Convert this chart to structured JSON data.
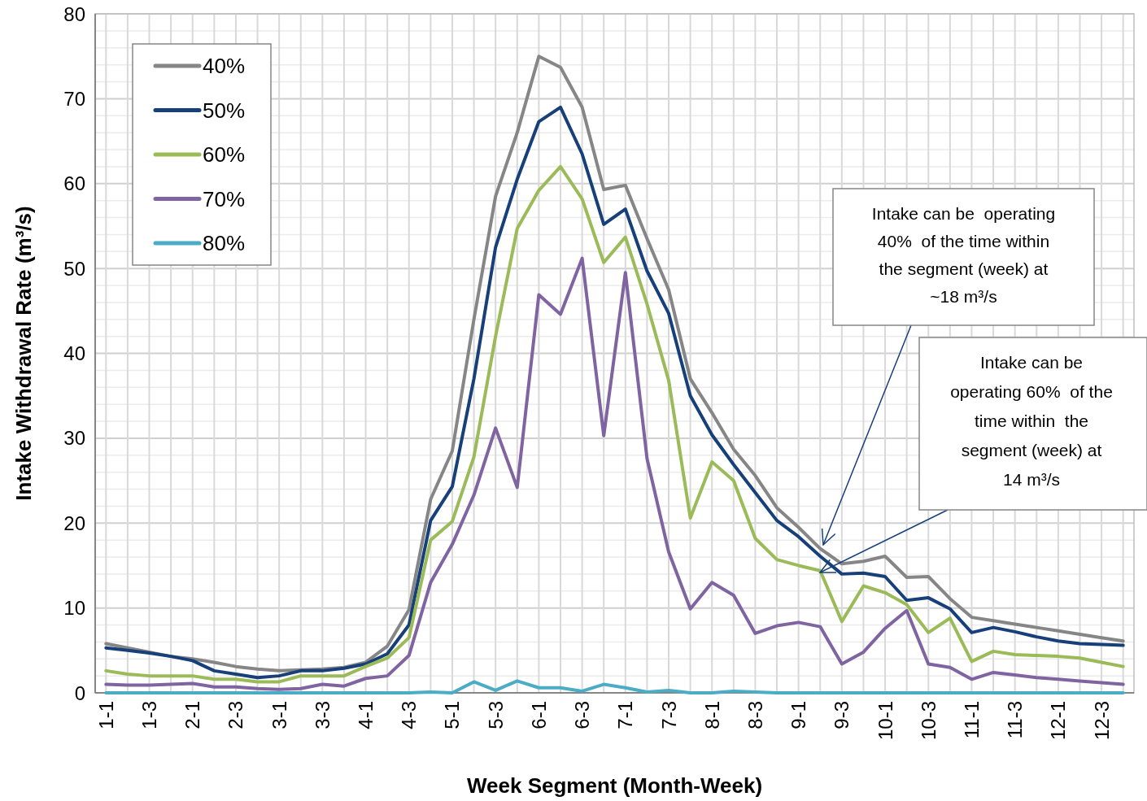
{
  "chart_data": {
    "type": "line",
    "xlabel": "Week Segment (Month-Week)",
    "ylabel": "Intake Withdrawal Rate (m³/s)",
    "categories": [
      "1-1",
      null,
      "1-3",
      null,
      "2-1",
      null,
      "2-3",
      null,
      "3-1",
      null,
      "3-3",
      null,
      "4-1",
      null,
      "4-3",
      null,
      "5-1",
      null,
      "5-3",
      null,
      "6-1",
      null,
      "6-3",
      null,
      "7-1",
      null,
      "7-3",
      null,
      "8-1",
      null,
      "8-3",
      null,
      "9-1",
      null,
      "9-3",
      null,
      "10-1",
      null,
      "10-3",
      null,
      "11-1",
      null,
      "11-3",
      null,
      "12-1",
      null,
      "12-3",
      null
    ],
    "series": [
      {
        "name": "40%",
        "color": "#868686",
        "values": [
          5.8,
          5.3,
          4.8,
          4.3,
          4.0,
          3.6,
          3.1,
          2.8,
          2.6,
          2.7,
          2.8,
          3.0,
          3.6,
          5.5,
          9.8,
          22.8,
          28.5,
          44,
          58.5,
          66,
          75,
          73.7,
          69,
          59.3,
          59.8,
          53.5,
          47.5,
          37,
          33,
          28.7,
          25.6,
          21.8,
          19.5,
          17,
          15.2,
          15.5,
          16.1,
          13.6,
          13.7,
          11.1,
          8.9,
          8.5,
          8.1,
          7.7,
          7.3,
          6.9,
          6.5,
          6.1
        ]
      },
      {
        "name": "50%",
        "color": "#17407a",
        "values": [
          5.3,
          5.0,
          4.7,
          4.3,
          3.8,
          2.6,
          2.2,
          1.8,
          2.0,
          2.6,
          2.6,
          2.9,
          3.4,
          4.6,
          8,
          20.3,
          24.3,
          37,
          52.5,
          60.5,
          67.3,
          69,
          63.5,
          55.2,
          57,
          49.7,
          44.7,
          35,
          30.4,
          26.9,
          23.6,
          20.3,
          18.4,
          16.1,
          14,
          14.1,
          13.7,
          10.9,
          11.2,
          9.9,
          7.1,
          7.7,
          7.2,
          6.6,
          6.1,
          5.8,
          5.7,
          5.6
        ]
      },
      {
        "name": "60%",
        "color": "#9bbb59",
        "values": [
          2.6,
          2.2,
          2.0,
          2.0,
          2.0,
          1.6,
          1.6,
          1.3,
          1.3,
          2.0,
          2.0,
          2.0,
          3.1,
          4.1,
          6.5,
          18,
          20.2,
          27.8,
          42,
          54.7,
          59.2,
          62,
          58.2,
          50.7,
          53.7,
          45.8,
          36.8,
          20.6,
          27.2,
          25.0,
          18.2,
          15.7,
          15.0,
          14.4,
          8.4,
          12.6,
          11.8,
          10.4,
          7.1,
          8.8,
          3.7,
          4.9,
          4.5,
          4.4,
          4.3,
          4.1,
          3.6,
          3.1
        ]
      },
      {
        "name": "70%",
        "color": "#8064a2",
        "values": [
          1.0,
          0.9,
          0.9,
          1.0,
          1.1,
          0.7,
          0.7,
          0.5,
          0.4,
          0.5,
          1.0,
          0.8,
          1.7,
          2.0,
          4.4,
          13,
          17.5,
          23.3,
          31.2,
          24.2,
          46.9,
          44.6,
          51.2,
          30.3,
          49.5,
          27.6,
          16.6,
          9.9,
          13,
          11.5,
          7.0,
          7.9,
          8.3,
          7.8,
          3.4,
          4.8,
          7.6,
          9.7,
          3.4,
          3.0,
          1.6,
          2.4,
          2.1,
          1.8,
          1.6,
          1.4,
          1.2,
          1.0
        ]
      },
      {
        "name": "80%",
        "color": "#4bacc6",
        "values": [
          0,
          0,
          0,
          0,
          0,
          0,
          0,
          0,
          0,
          0,
          0,
          0,
          0,
          0,
          0,
          0.1,
          0,
          1.3,
          0.3,
          1.4,
          0.6,
          0.6,
          0.2,
          1.0,
          0.6,
          0.1,
          0.3,
          0,
          0,
          0.2,
          0.1,
          0,
          0,
          0,
          0,
          0,
          0,
          0,
          0,
          0,
          0,
          0,
          0,
          0,
          0,
          0,
          0,
          0
        ]
      }
    ],
    "ylim": [
      0,
      80
    ],
    "yticks": [
      0,
      10,
      20,
      30,
      40,
      50,
      60,
      70,
      80
    ],
    "grid": true,
    "legend": "top left",
    "line_style": "solid",
    "marker": "none",
    "annotations": [
      "Intake can be  operating\n40%  of the time within\nthe segment (week) at\n~18 m³/s",
      "Intake can be\noperating 60%  of the\ntime within  the\nsegment (week) at\n14 m³/s"
    ]
  }
}
